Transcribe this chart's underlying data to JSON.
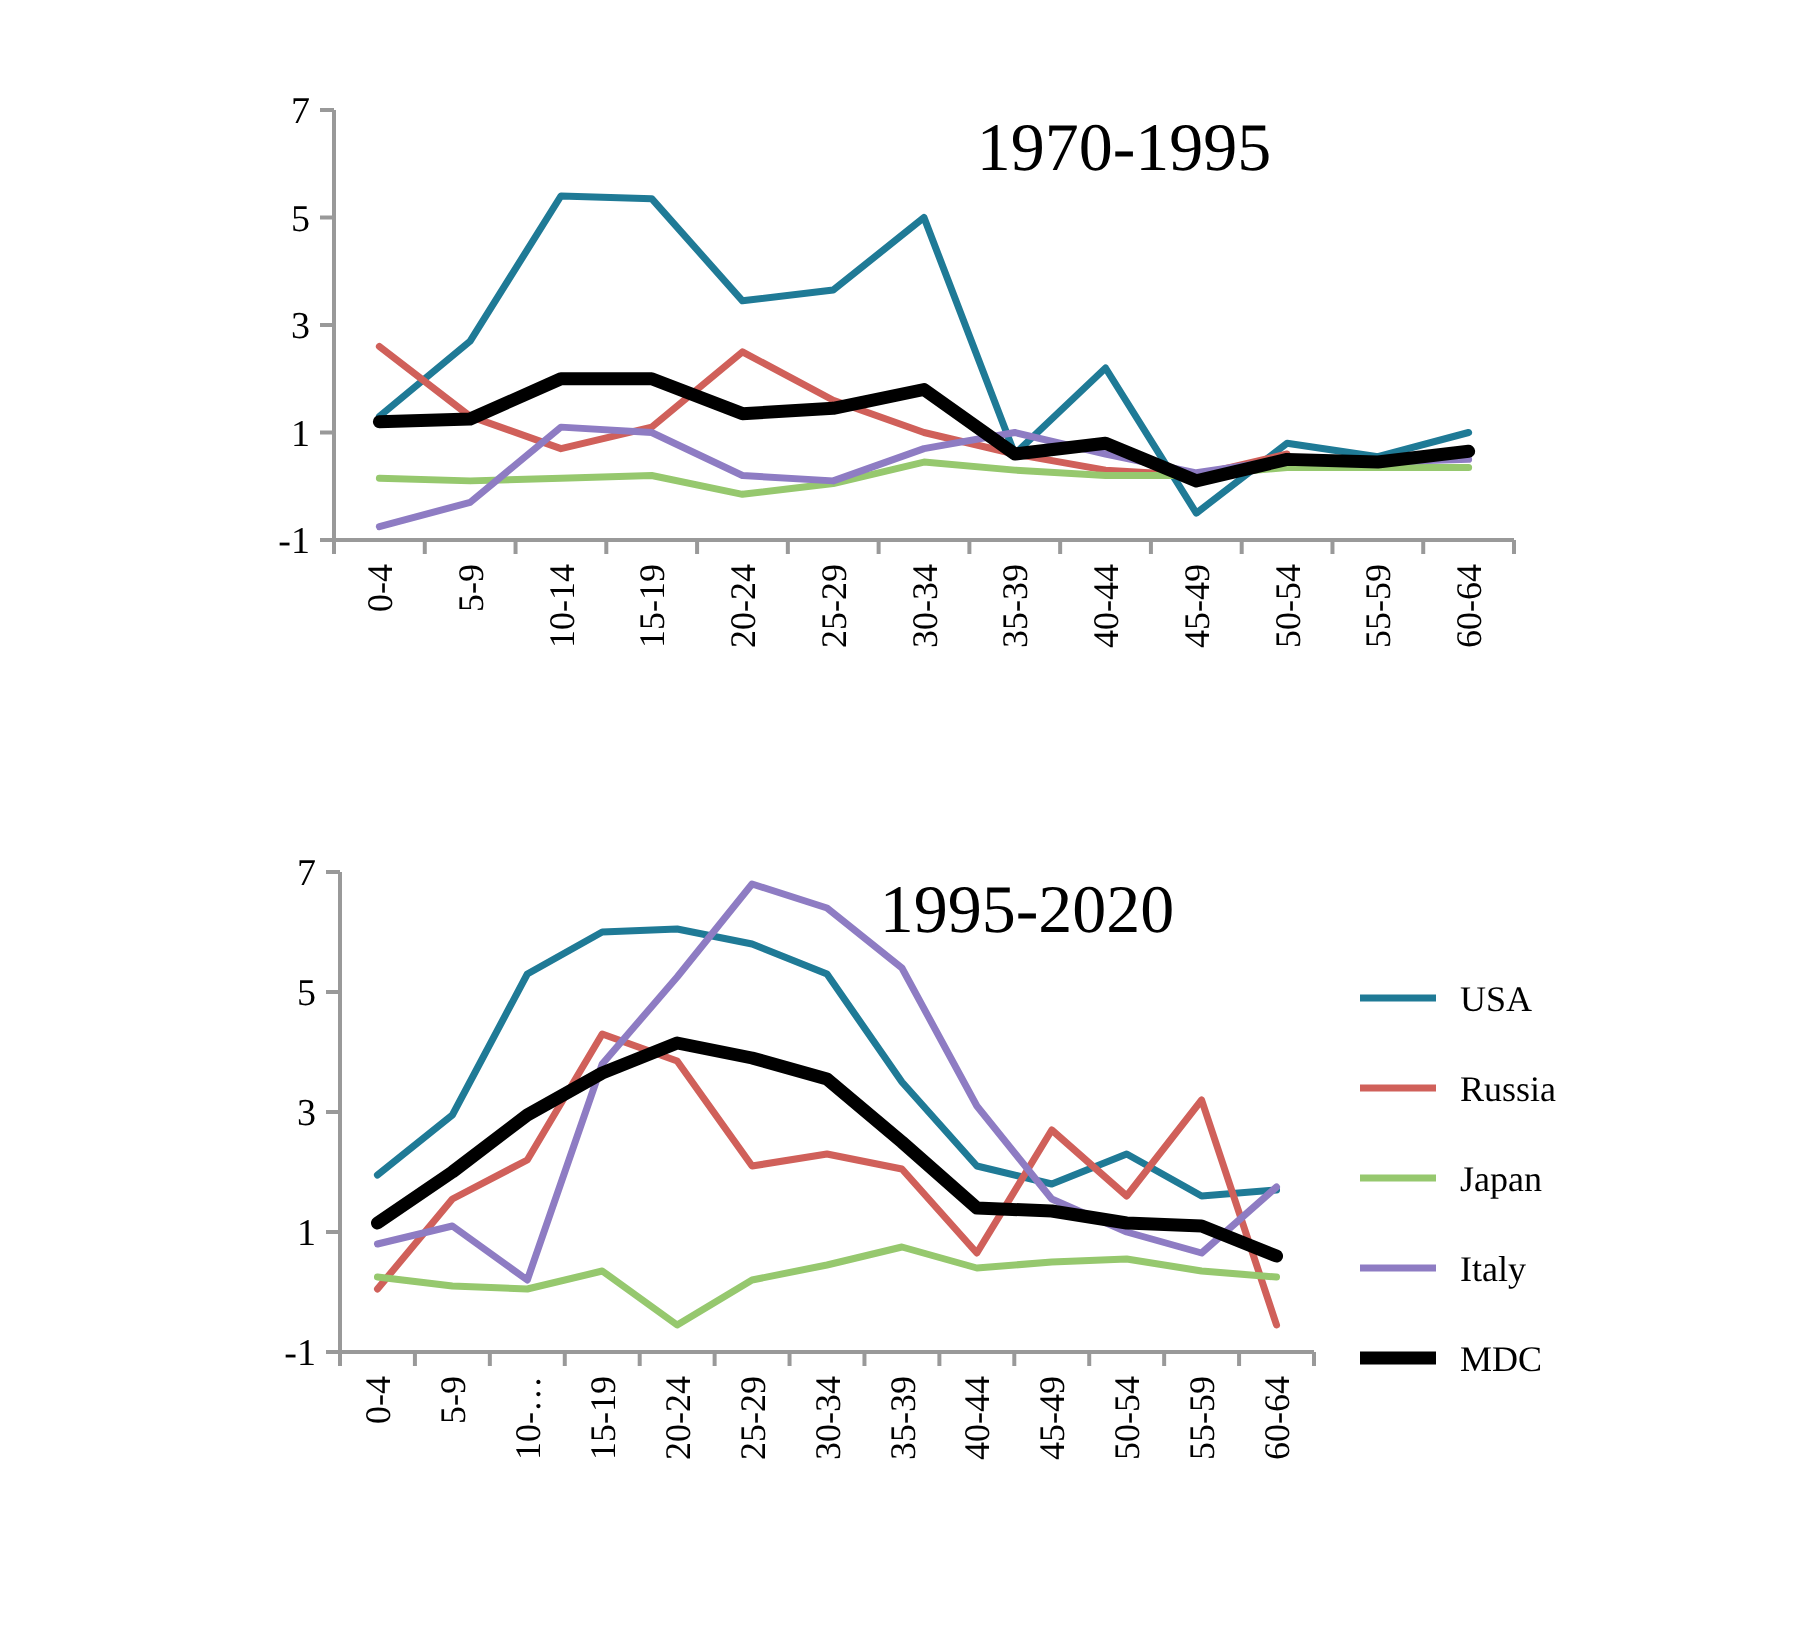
{
  "chart_data": [
    {
      "type": "line",
      "title": "1970-1995",
      "categories": [
        "0-4",
        "5-9",
        "10-14",
        "15-19",
        "20-24",
        "25-29",
        "30-34",
        "35-39",
        "40-44",
        "45-49",
        "50-54",
        "55-59",
        "60-64"
      ],
      "ylim": [
        -1,
        7
      ],
      "yticks": [
        -1,
        1,
        3,
        5,
        7
      ],
      "grid": false,
      "legend": false,
      "series": [
        {
          "color": "#1f7a96",
          "values": [
            1.3,
            2.7,
            5.4,
            5.35,
            3.45,
            3.65,
            5.0,
            0.6,
            2.2,
            -0.5,
            0.8,
            0.55,
            1.0
          ]
        },
        {
          "color": "#d0605a",
          "values": [
            2.6,
            1.3,
            0.7,
            1.1,
            2.5,
            1.6,
            1.0,
            0.6,
            0.3,
            0.2,
            0.6,
            null,
            null
          ]
        },
        {
          "color": "#96c86e",
          "values": [
            0.15,
            0.1,
            0.15,
            0.2,
            -0.15,
            0.05,
            0.45,
            0.3,
            0.2,
            0.2,
            0.35,
            0.35,
            0.35
          ]
        },
        {
          "color": "#8e7cc3",
          "values": [
            -0.75,
            -0.3,
            1.1,
            1.0,
            0.2,
            0.1,
            0.7,
            1.0,
            0.6,
            0.25,
            0.5,
            0.45,
            0.5
          ]
        },
        {
          "color": "#000000",
          "values": [
            1.2,
            1.25,
            2.0,
            2.0,
            1.35,
            1.45,
            1.8,
            0.6,
            0.8,
            0.1,
            0.5,
            0.45,
            0.65
          ]
        }
      ]
    },
    {
      "type": "line",
      "title": "1995-2020",
      "categories": [
        "0-4",
        "5-9",
        "10-…",
        "15-19",
        "20-24",
        "25-29",
        "30-34",
        "35-39",
        "40-44",
        "45-49",
        "50-54",
        "55-59",
        "60-64"
      ],
      "ylim": [
        -1,
        7
      ],
      "yticks": [
        -1,
        1,
        3,
        5,
        7
      ],
      "grid": false,
      "legend": "right",
      "series": [
        {
          "name": "USA",
          "color": "#1f7a96",
          "values": [
            1.95,
            2.95,
            5.3,
            6.0,
            6.05,
            5.8,
            5.3,
            3.5,
            2.1,
            1.8,
            2.3,
            1.6,
            1.7
          ]
        },
        {
          "name": "Russia",
          "color": "#d0605a",
          "values": [
            0.05,
            1.55,
            2.2,
            4.3,
            3.85,
            2.1,
            2.3,
            2.05,
            0.65,
            2.7,
            1.6,
            3.2,
            -0.55
          ]
        },
        {
          "name": "Japan",
          "color": "#96c86e",
          "values": [
            0.25,
            0.1,
            0.05,
            0.35,
            -0.55,
            0.2,
            0.45,
            0.75,
            0.4,
            0.5,
            0.55,
            0.35,
            0.25
          ]
        },
        {
          "name": "Italy",
          "color": "#8e7cc3",
          "values": [
            0.8,
            1.1,
            0.2,
            3.8,
            5.25,
            6.8,
            6.4,
            5.4,
            3.1,
            1.55,
            1.0,
            0.65,
            1.75
          ]
        },
        {
          "name": "MDC",
          "color": "#000000",
          "values": [
            1.15,
            2.0,
            2.95,
            3.65,
            4.15,
            3.9,
            3.55,
            2.5,
            1.4,
            1.35,
            1.15,
            1.1,
            0.6
          ]
        }
      ]
    }
  ]
}
